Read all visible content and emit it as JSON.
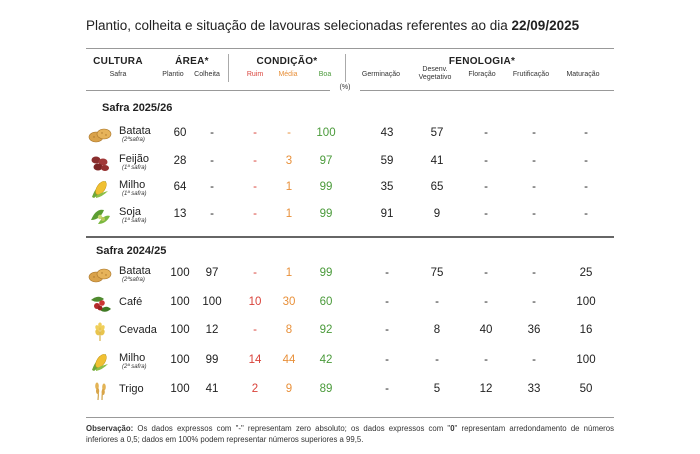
{
  "title": {
    "text": "Plantio, colheita e situação de lavouras selecionadas referentes ao dia ",
    "date": "22/09/2025"
  },
  "header": {
    "cultura": "CULTURA",
    "safra": "Safra",
    "area": "ÁREA*",
    "plantio": "Plantio",
    "colheita": "Colheita",
    "condicao": "CONDIÇÃO*",
    "ruim": "Ruim",
    "media": "Média",
    "boa": "Boa",
    "fenologia": "FENOLOGIA*",
    "germinacao": "Germinação",
    "desenv_1": "Desenv.",
    "desenv_2": "Vegetativo",
    "floracao": "Floração",
    "frutificacao": "Frutificação",
    "maturacao": "Maturação",
    "unit": "(%)"
  },
  "colors": {
    "red": "#d9423a",
    "orange": "#e8903a",
    "green": "#4a9a3a"
  },
  "sections": [
    {
      "title": "Safra 2025/26",
      "rows": [
        {
          "icon": "potato-icon",
          "crop": "Batata",
          "note": "(2ªsafra)",
          "plantio": "60",
          "colheita": "-",
          "ruim": "-",
          "media": "-",
          "boa": "100",
          "germinacao": "43",
          "desenv": "57",
          "floracao": "-",
          "frutificacao": "-",
          "maturacao": "-"
        },
        {
          "icon": "bean-icon",
          "crop": "Feijão",
          "note": "(1ª safra)",
          "plantio": "28",
          "colheita": "-",
          "ruim": "-",
          "media": "3",
          "boa": "97",
          "germinacao": "59",
          "desenv": "41",
          "floracao": "-",
          "frutificacao": "-",
          "maturacao": "-"
        },
        {
          "icon": "corn-icon",
          "crop": "Milho",
          "note": "(1ª safra)",
          "plantio": "64",
          "colheita": "-",
          "ruim": "-",
          "media": "1",
          "boa": "99",
          "germinacao": "35",
          "desenv": "65",
          "floracao": "-",
          "frutificacao": "-",
          "maturacao": "-"
        },
        {
          "icon": "soy-icon",
          "crop": "Soja",
          "note": "(1ª safra)",
          "plantio": "13",
          "colheita": "-",
          "ruim": "-",
          "media": "1",
          "boa": "99",
          "germinacao": "91",
          "desenv": "9",
          "floracao": "-",
          "frutificacao": "-",
          "maturacao": "-"
        }
      ]
    },
    {
      "title": "Safra 2024/25",
      "rows": [
        {
          "icon": "potato-icon",
          "crop": "Batata",
          "note": "(2ªsafra)",
          "plantio": "100",
          "colheita": "97",
          "ruim": "-",
          "media": "1",
          "boa": "99",
          "germinacao": "-",
          "desenv": "75",
          "floracao": "-",
          "frutificacao": "-",
          "maturacao": "25"
        },
        {
          "icon": "coffee-icon",
          "crop": "Café",
          "note": "",
          "plantio": "100",
          "colheita": "100",
          "ruim": "10",
          "media": "30",
          "boa": "60",
          "germinacao": "-",
          "desenv": "-",
          "floracao": "-",
          "frutificacao": "-",
          "maturacao": "100"
        },
        {
          "icon": "barley-icon",
          "crop": "Cevada",
          "note": "",
          "plantio": "100",
          "colheita": "12",
          "ruim": "-",
          "media": "8",
          "boa": "92",
          "germinacao": "-",
          "desenv": "8",
          "floracao": "40",
          "frutificacao": "36",
          "maturacao": "16"
        },
        {
          "icon": "corn-icon",
          "crop": "Milho",
          "note": "(2ª safra)",
          "plantio": "100",
          "colheita": "99",
          "ruim": "14",
          "media": "44",
          "boa": "42",
          "germinacao": "-",
          "desenv": "-",
          "floracao": "-",
          "frutificacao": "-",
          "maturacao": "100"
        },
        {
          "icon": "wheat-icon",
          "crop": "Trigo",
          "note": "",
          "plantio": "100",
          "colheita": "41",
          "ruim": "2",
          "media": "9",
          "boa": "89",
          "germinacao": "-",
          "desenv": "5",
          "floracao": "12",
          "frutificacao": "33",
          "maturacao": "50"
        }
      ]
    }
  ],
  "footnote": {
    "label": "Observação:",
    "text_1": " Os dados expressos com \"-\" representam zero absoluto; os dados expressos com \"",
    "zero": "0",
    "text_2": "\" representam arredondamento de números inferiores a 0,5; dados em 100% podem representar números superiores a 99,5."
  }
}
